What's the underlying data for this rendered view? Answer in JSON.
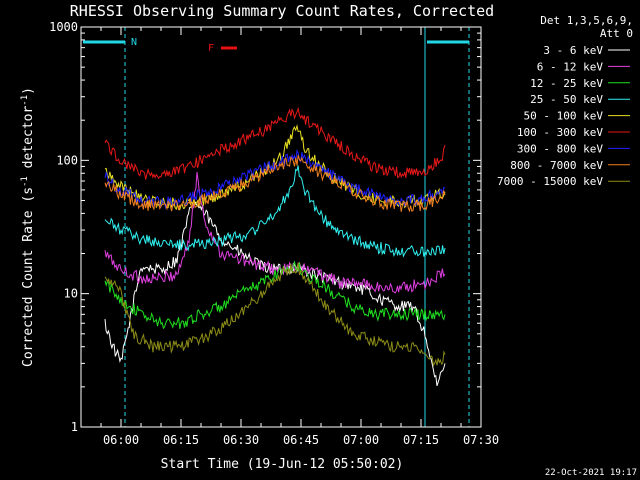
{
  "chart_data": {
    "type": "line",
    "title": "RHESSI Observing Summary Count Rates, Corrected",
    "ylabel_parts": [
      "Corrected Count Rate (s",
      "-1",
      " detector",
      "-1",
      ")"
    ],
    "xlabel": "Start Time (19-Jun-12 05:50:02)",
    "y_scale": "log",
    "ylim": [
      1,
      1000
    ],
    "y_ticks": [
      1,
      10,
      100,
      1000
    ],
    "y_tick_labels": [
      "1",
      "10",
      "100",
      "1000"
    ],
    "xlim": [
      "05:50",
      "07:30"
    ],
    "x_ticks": [
      "06:00",
      "06:15",
      "06:30",
      "06:45",
      "07:00",
      "07:15",
      "07:30"
    ],
    "grid": false,
    "legend": {
      "placement": "right",
      "header": [
        "Det 1,3,5,6,9,",
        "Att 0"
      ]
    },
    "footer": "22-Oct-2021 19:17",
    "flags": [
      {
        "label": "N",
        "color": "#22d8e8",
        "ranges": [
          [
            "05:50",
            "06:01"
          ],
          [
            "07:16",
            "07:27"
          ]
        ]
      },
      {
        "label": "F",
        "color": "#e81010",
        "ranges": [
          [
            "06:22",
            "06:29"
          ]
        ]
      }
    ],
    "vertical_markers": {
      "solid": [
        "05:50",
        "07:16"
      ],
      "dashed": [
        "06:01",
        "07:27"
      ],
      "color": "#22d8e8"
    },
    "series": [
      {
        "name": "3 - 6 keV",
        "color": "#ffffff",
        "x": [
          "05:56",
          "05:58",
          "06:00",
          "06:05",
          "06:10",
          "06:14",
          "06:16",
          "06:18",
          "06:21",
          "06:25",
          "06:30",
          "06:35",
          "06:40",
          "06:44",
          "06:48",
          "06:55",
          "07:00",
          "07:05",
          "07:10",
          "07:13",
          "07:16",
          "07:19",
          "07:21"
        ],
        "y": [
          6,
          4,
          3,
          16,
          15,
          18,
          30,
          50,
          40,
          26,
          20,
          16,
          15,
          16,
          14,
          12,
          11,
          9,
          8,
          8,
          5,
          2,
          3
        ]
      },
      {
        "name": "6 - 12 keV",
        "color": "#e040e0",
        "x": [
          "05:56",
          "06:00",
          "06:05",
          "06:10",
          "06:14",
          "06:17",
          "06:19",
          "06:21",
          "06:25",
          "06:30",
          "06:35",
          "06:40",
          "06:44",
          "06:50",
          "06:55",
          "07:00",
          "07:05",
          "07:10",
          "07:16",
          "07:20",
          "07:21"
        ],
        "y": [
          20,
          15,
          13,
          13,
          14,
          25,
          75,
          35,
          20,
          18,
          16,
          15,
          16,
          14,
          12,
          12,
          11,
          11,
          12,
          14,
          14
        ]
      },
      {
        "name": "12 - 25 keV",
        "color": "#20e020",
        "x": [
          "05:56",
          "06:00",
          "06:05",
          "06:10",
          "06:15",
          "06:20",
          "06:25",
          "06:30",
          "06:35",
          "06:40",
          "06:44",
          "06:48",
          "06:53",
          "06:58",
          "07:03",
          "07:10",
          "07:16",
          "07:21"
        ],
        "y": [
          12,
          9,
          7,
          6,
          6,
          7,
          8,
          10,
          12,
          15,
          16,
          13,
          10,
          8,
          7,
          7,
          7,
          7
        ]
      },
      {
        "name": "25 - 50 keV",
        "color": "#30f0f0",
        "x": [
          "05:56",
          "06:00",
          "06:05",
          "06:10",
          "06:15",
          "06:20",
          "06:25",
          "06:30",
          "06:35",
          "06:40",
          "06:43",
          "06:44",
          "06:46",
          "06:50",
          "06:55",
          "07:00",
          "07:05",
          "07:10",
          "07:16",
          "07:21"
        ],
        "y": [
          35,
          30,
          26,
          24,
          23,
          24,
          25,
          27,
          32,
          45,
          70,
          90,
          60,
          38,
          28,
          24,
          22,
          21,
          21,
          22
        ]
      },
      {
        "name": "50 - 100 keV",
        "color": "#e8e020",
        "x": [
          "05:56",
          "06:00",
          "06:05",
          "06:10",
          "06:15",
          "06:20",
          "06:25",
          "06:30",
          "06:35",
          "06:40",
          "06:43",
          "06:44",
          "06:46",
          "06:50",
          "06:55",
          "07:00",
          "07:05",
          "07:10",
          "07:16",
          "07:21"
        ],
        "y": [
          85,
          65,
          52,
          48,
          47,
          50,
          56,
          65,
          80,
          105,
          160,
          190,
          120,
          88,
          68,
          56,
          50,
          48,
          50,
          58
        ]
      },
      {
        "name": "100 - 300 keV",
        "color": "#e81818",
        "x": [
          "05:56",
          "06:00",
          "06:05",
          "06:10",
          "06:15",
          "06:20",
          "06:25",
          "06:30",
          "06:35",
          "06:40",
          "06:44",
          "06:48",
          "06:53",
          "06:58",
          "07:03",
          "07:08",
          "07:13",
          "07:16",
          "07:20",
          "07:21"
        ],
        "y": [
          135,
          100,
          80,
          78,
          85,
          100,
          120,
          140,
          165,
          200,
          230,
          185,
          140,
          110,
          90,
          82,
          80,
          85,
          100,
          130
        ]
      },
      {
        "name": "300 - 800 keV",
        "color": "#2020ff",
        "x": [
          "05:56",
          "06:00",
          "06:05",
          "06:10",
          "06:15",
          "06:20",
          "06:25",
          "06:30",
          "06:35",
          "06:40",
          "06:44",
          "06:48",
          "06:53",
          "06:58",
          "07:03",
          "07:08",
          "07:13",
          "07:16",
          "07:20",
          "07:21"
        ],
        "y": [
          75,
          60,
          50,
          48,
          50,
          55,
          62,
          72,
          85,
          100,
          110,
          95,
          75,
          62,
          55,
          50,
          50,
          52,
          58,
          62
        ]
      },
      {
        "name": "800 - 7000 keV",
        "color": "#f08020",
        "x": [
          "05:56",
          "06:00",
          "06:05",
          "06:10",
          "06:15",
          "06:20",
          "06:25",
          "06:30",
          "06:35",
          "06:40",
          "06:44",
          "06:48",
          "06:53",
          "06:58",
          "07:03",
          "07:08",
          "07:13",
          "07:16",
          "07:20",
          "07:21"
        ],
        "y": [
          70,
          55,
          47,
          45,
          46,
          50,
          56,
          65,
          78,
          92,
          100,
          88,
          70,
          58,
          50,
          46,
          45,
          47,
          52,
          55
        ]
      },
      {
        "name": "7000 - 15000 keV",
        "color": "#8c8c18",
        "x": [
          "05:56",
          "06:00",
          "06:03",
          "06:08",
          "06:15",
          "06:20",
          "06:25",
          "06:30",
          "06:35",
          "06:40",
          "06:44",
          "06:48",
          "06:53",
          "06:58",
          "07:03",
          "07:08",
          "07:13",
          "07:16",
          "07:19",
          "07:21"
        ],
        "y": [
          14,
          10,
          5,
          4,
          4,
          4.5,
          5.5,
          7,
          10,
          14,
          16,
          11,
          7,
          5,
          4.5,
          4,
          4,
          3.5,
          3,
          3.5
        ]
      }
    ]
  }
}
